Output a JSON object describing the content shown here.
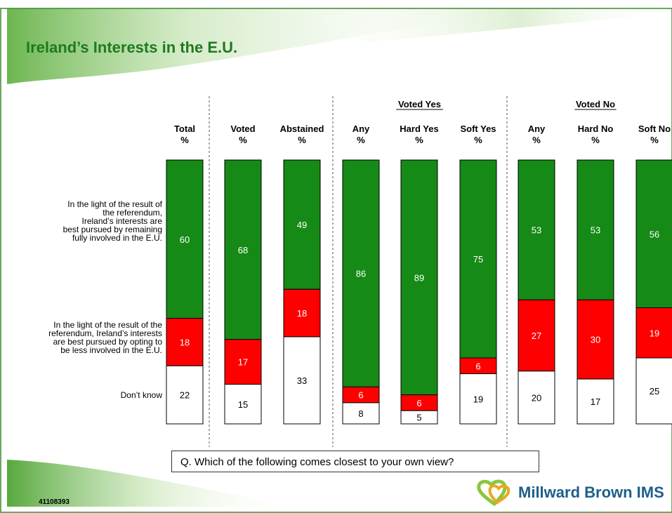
{
  "title": "Ireland’s Interests in the E.U.",
  "question": "Q.    Which of the following comes closest to your own view?",
  "footer_id": "41108393",
  "logo_text": "Millward Brown IMS",
  "colors": {
    "green": "#168a16",
    "red": "#ff0000",
    "white": "#ffffff",
    "title": "#1f7a1f",
    "logo": "#1d5f8a"
  },
  "chart_data": {
    "type": "bar",
    "stacked": true,
    "orientation": "vertical",
    "percent": true,
    "groups": [
      {
        "label": "",
        "columns": [
          0,
          1,
          2
        ]
      },
      {
        "label": "Voted Yes",
        "columns": [
          3,
          4,
          5
        ]
      },
      {
        "label": "Voted No",
        "columns": [
          6,
          7,
          8
        ]
      }
    ],
    "categories": [
      {
        "name": "Total",
        "unit": "%"
      },
      {
        "name": "Voted",
        "unit": "%"
      },
      {
        "name": "Abstained",
        "unit": "%"
      },
      {
        "name": "Any",
        "unit": "%"
      },
      {
        "name": "Hard Yes",
        "unit": "%"
      },
      {
        "name": "Soft Yes",
        "unit": "%"
      },
      {
        "name": "Any",
        "unit": "%"
      },
      {
        "name": "Hard No",
        "unit": "%"
      },
      {
        "name": "Soft No",
        "unit": "%"
      }
    ],
    "series": [
      {
        "name": "In the light of the result of the referendum, Ireland’s interests are best pursued by remaining fully involved in the E.U.",
        "color": "#168a16",
        "values": [
          60,
          68,
          49,
          86,
          89,
          75,
          53,
          53,
          56
        ]
      },
      {
        "name": "In the light of the result of the referendum, Ireland’s interests are best pursued by opting to be less involved in the E.U.",
        "color": "#ff0000",
        "values": [
          18,
          17,
          18,
          6,
          6,
          6,
          27,
          30,
          19
        ]
      },
      {
        "name": "Don’t know",
        "color": "#ffffff",
        "values": [
          22,
          15,
          33,
          8,
          5,
          19,
          20,
          17,
          25
        ]
      }
    ],
    "row_labels": [
      [
        "In the light of the result of",
        "the referendum,",
        "Ireland’s interests are",
        "best pursued by remaining",
        "fully involved in the E.U."
      ],
      [
        "In the light of the result of the",
        "referendum, Ireland’s interests",
        "are best pursued by opting to",
        "be less involved in the E.U."
      ],
      [
        "Don’t know"
      ]
    ]
  }
}
